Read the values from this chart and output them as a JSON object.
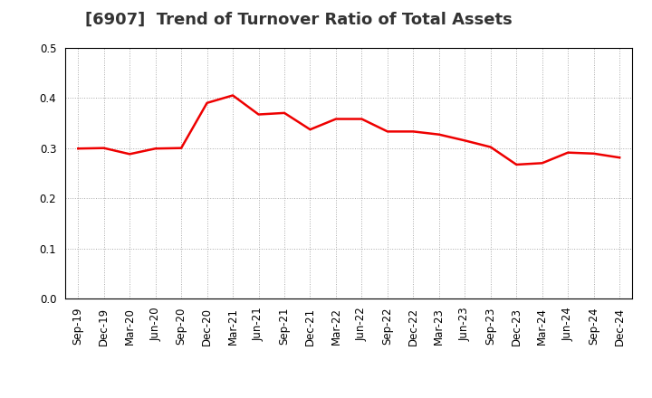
{
  "title": "[6907]  Trend of Turnover Ratio of Total Assets",
  "x_labels": [
    "Sep-19",
    "Dec-19",
    "Mar-20",
    "Jun-20",
    "Sep-20",
    "Dec-20",
    "Mar-21",
    "Jun-21",
    "Sep-21",
    "Dec-21",
    "Mar-22",
    "Jun-22",
    "Sep-22",
    "Dec-22",
    "Mar-23",
    "Jun-23",
    "Sep-23",
    "Dec-23",
    "Mar-24",
    "Jun-24",
    "Sep-24",
    "Dec-24"
  ],
  "y_values": [
    0.299,
    0.3,
    0.288,
    0.299,
    0.3,
    0.39,
    0.405,
    0.367,
    0.37,
    0.337,
    0.358,
    0.358,
    0.333,
    0.333,
    0.327,
    0.315,
    0.302,
    0.267,
    0.27,
    0.291,
    0.289,
    0.281
  ],
  "line_color": "#EE0000",
  "line_width": 1.8,
  "ylim": [
    0.0,
    0.5
  ],
  "yticks": [
    0.0,
    0.1,
    0.2,
    0.3,
    0.4,
    0.5
  ],
  "grid_color": "#aaaaaa",
  "grid_linestyle": ":",
  "background_color": "#ffffff",
  "title_fontsize": 13,
  "tick_fontsize": 8.5,
  "spine_color": "#000000"
}
